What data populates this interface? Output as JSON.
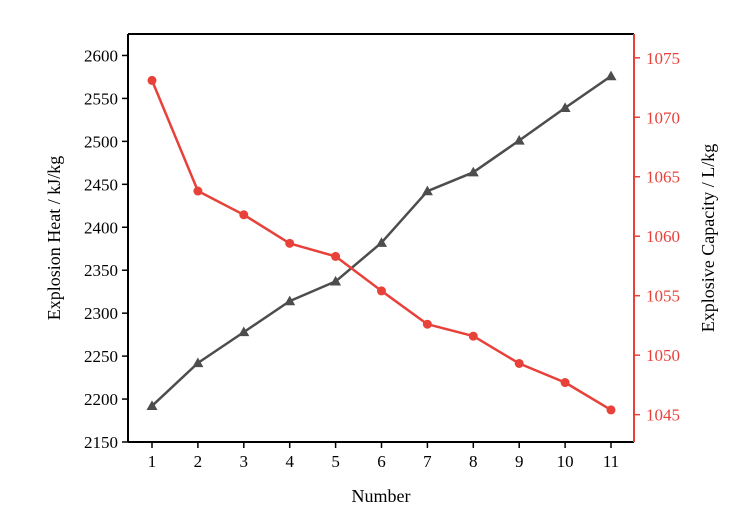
{
  "chart_data": {
    "type": "line",
    "x": [
      1,
      2,
      3,
      4,
      5,
      6,
      7,
      8,
      9,
      10,
      11
    ],
    "xlabel": "Number",
    "xticks": [
      "1",
      "2",
      "3",
      "4",
      "5",
      "6",
      "7",
      "8",
      "9",
      "10",
      "11"
    ],
    "y_left": {
      "label": "Explosion Heat / kJ/kg",
      "range": [
        2150,
        2625
      ],
      "ticks": [
        "2150",
        "2200",
        "2250",
        "2300",
        "2350",
        "2400",
        "2450",
        "2500",
        "2550",
        "2600"
      ],
      "color": "#000000"
    },
    "y_right": {
      "label": "Explosive Capacity / L/kg",
      "range": [
        1042.7,
        1077.0
      ],
      "ticks": [
        "1045",
        "1050",
        "1055",
        "1060",
        "1065",
        "1070",
        "1075"
      ],
      "color": "#e8413a"
    },
    "series": [
      {
        "axis": "left",
        "marker": "triangle",
        "color": "#4d4d4d",
        "values": [
          2192,
          2242,
          2278,
          2314,
          2337,
          2382,
          2442,
          2464,
          2501,
          2539,
          2576
        ]
      },
      {
        "axis": "right",
        "marker": "circle",
        "color": "#e8413a",
        "values": [
          1073.1,
          1063.8,
          1061.8,
          1059.4,
          1058.3,
          1055.4,
          1052.6,
          1051.6,
          1049.3,
          1047.7,
          1045.4
        ]
      }
    ],
    "grid": false,
    "legend": "none"
  }
}
